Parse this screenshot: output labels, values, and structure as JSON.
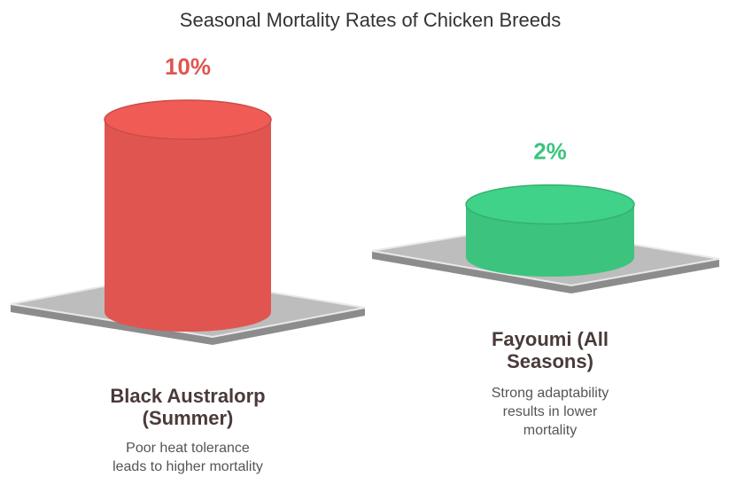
{
  "chart_data": {
    "type": "cylinder-bar",
    "title": "Seasonal Mortality Rates of Chicken Breeds",
    "categories": [
      [
        "Black Australorp",
        "(Summer)"
      ],
      [
        "Fayoumi (All",
        "Seasons)"
      ]
    ],
    "values": [
      10,
      2
    ],
    "value_labels": [
      "10%",
      "2%"
    ],
    "colors": [
      "#e05550",
      "#3cc47f"
    ],
    "descriptions": [
      [
        "Poor heat tolerance",
        "leads to higher mortality"
      ],
      [
        "Strong adaptability",
        "results in lower",
        "mortality"
      ]
    ]
  }
}
